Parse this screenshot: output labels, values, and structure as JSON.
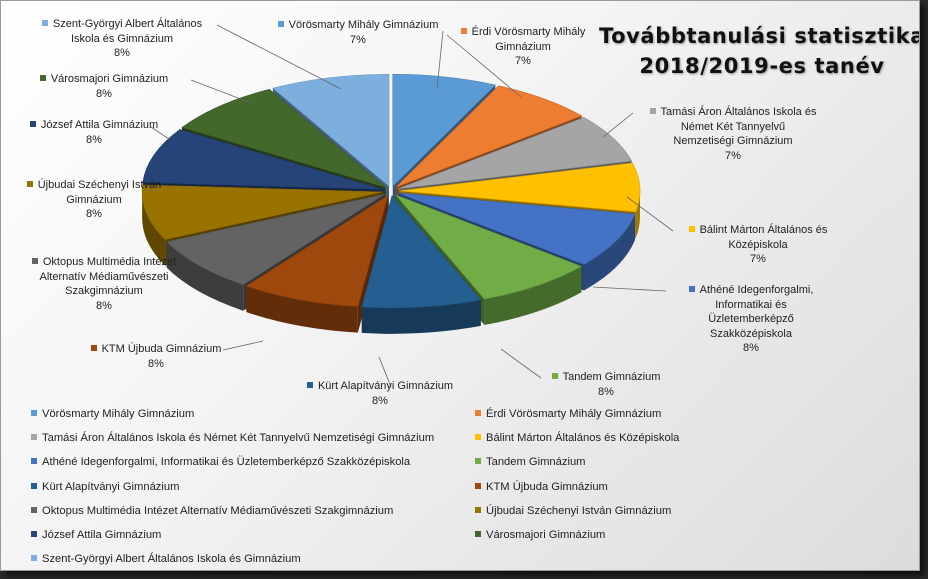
{
  "chart_data": {
    "type": "pie",
    "title": [
      "Továbbtanulási statisztika",
      "2018/2019-es tanév"
    ],
    "slices": [
      {
        "name": "Vörösmarty Mihály Gimnázium",
        "percent": 7,
        "label": "7%",
        "color": "#5b9bd5"
      },
      {
        "name": "Érdi Vörösmarty Mihály Gimnázium",
        "percent": 7,
        "label": "7%",
        "color": "#ed7d31"
      },
      {
        "name": "Tamási Áron Általános Iskola és Német Két Tannyelvű Nemzetiségi Gimnázium",
        "percent": 7,
        "label": "7%",
        "color": "#a5a5a5"
      },
      {
        "name": "Bálint Márton Általános és Középiskola",
        "percent": 7,
        "label": "7%",
        "color": "#ffc000"
      },
      {
        "name": "Athéné Idegenforgalmi, Informatikai és Üzletemberképző Szakközépiskola",
        "percent": 8,
        "label": "8%",
        "color": "#4472c4"
      },
      {
        "name": "Tandem Gimnázium",
        "percent": 8,
        "label": "8%",
        "color": "#70ad47"
      },
      {
        "name": "Kürt Alapítványi Gimnázium",
        "percent": 8,
        "label": "8%",
        "color": "#255e91"
      },
      {
        "name": "KTM Újbuda Gimnázium",
        "percent": 8,
        "label": "8%",
        "color": "#9e480e"
      },
      {
        "name": "Oktopus Multimédia Intézet Alternatív Médiaművészeti Szakgimnázium",
        "percent": 8,
        "label": "8%",
        "color": "#636363"
      },
      {
        "name": "Újbudai Széchenyi István Gimnázium",
        "percent": 8,
        "label": "8%",
        "color": "#997300"
      },
      {
        "name": "József Attila Gimnázium",
        "percent": 8,
        "label": "8%",
        "color": "#264478"
      },
      {
        "name": "Városmajori Gimnázium",
        "percent": 8,
        "label": "8%",
        "color": "#43682b"
      },
      {
        "name": "Szent-Györgyi Albert Általános Iskola és Gimnázium",
        "percent": 8,
        "label": "8%",
        "color": "#7cafdd"
      }
    ],
    "slice_labels": [
      [
        "Vörösmarty Mihály Gimnázium"
      ],
      [
        "Érdi Vörösmarty Mihály",
        "Gimnázium"
      ],
      [
        "Tamási Áron Általános Iskola és",
        "Német Két Tannyelvű",
        "Nemzetiségi Gimnázium"
      ],
      [
        "Bálint Márton Általános és",
        "Középiskola"
      ],
      [
        "Athéné Idegenforgalmi,",
        "Informatikai és",
        "Üzletemberképző",
        "Szakközépiskola"
      ],
      [
        "Tandem Gimnázium"
      ],
      [
        "Kürt Alapítványi Gimnázium"
      ],
      [
        "KTM Újbuda Gimnázium"
      ],
      [
        "Oktopus Multimédia Intézet",
        "Alternatív Médiaművészeti",
        "Szakgimnázium"
      ],
      [
        "Újbudai Széchenyi István",
        "Gimnázium"
      ],
      [
        "József Attila Gimnázium"
      ],
      [
        "Városmajori Gimnázium"
      ],
      [
        "Szent-Györgyi Albert Általános",
        "Iskola és Gimnázium"
      ]
    ],
    "legend_placement": "bottom",
    "style": "3d-exploded"
  }
}
